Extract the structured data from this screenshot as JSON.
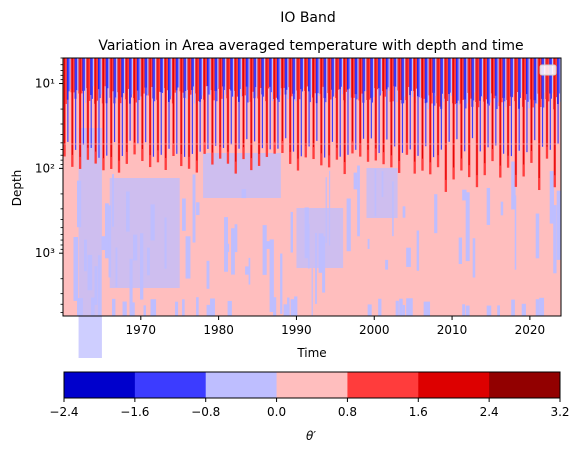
{
  "chart_data": {
    "type": "heatmap",
    "suptitle": "IO Band",
    "title": "Variation in Area averaged temperature with depth and time",
    "xlabel": "Time",
    "ylabel": "Depth",
    "x_range": [
      1960,
      2024
    ],
    "x_ticks": [
      1970,
      1980,
      1990,
      2000,
      2010,
      2020
    ],
    "y_scale": "log",
    "y_inverted": true,
    "y_range": [
      5,
      5500
    ],
    "y_ticks": [
      {
        "value": 10,
        "label": "10¹"
      },
      {
        "value": 100,
        "label": "10²"
      },
      {
        "value": 1000,
        "label": "10³"
      }
    ],
    "legend_placement": "top-right",
    "grid": false,
    "colorbar": {
      "label": "θ′",
      "levels": [
        -2.4,
        -1.6,
        -0.8,
        0.0,
        0.8,
        1.6,
        2.4,
        3.2
      ],
      "tick_labels": [
        "−2.4",
        "−1.6",
        "−0.8",
        "0.0",
        "0.8",
        "1.6",
        "2.4",
        "3.2"
      ],
      "colors": [
        "#0000cc",
        "#3c3cff",
        "#bebeff",
        "#ffbebe",
        "#ff3c3c",
        "#dd0000",
        "#920000"
      ]
    },
    "description_regions": {
      "surface_oscillation_depth_bottom": 60,
      "deep_anomaly_pattern": "mixed light red and light blue, predominantly light red after 2005"
    }
  }
}
